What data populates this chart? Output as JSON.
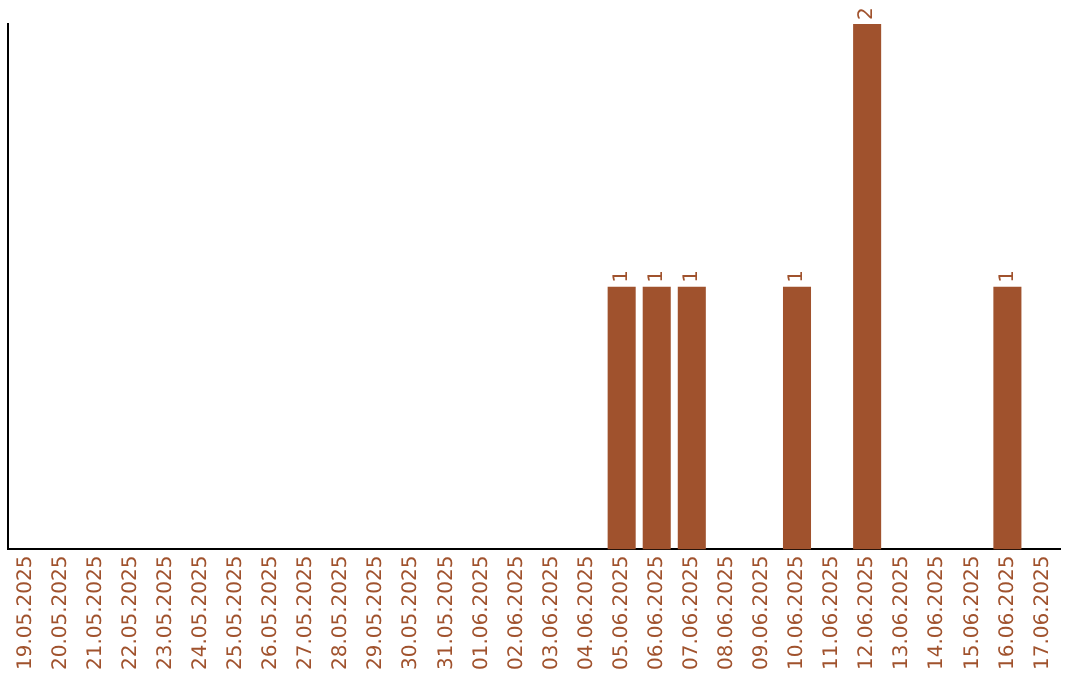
{
  "chart_data": {
    "type": "bar",
    "categories": [
      "19.05.2025",
      "20.05.2025",
      "21.05.2025",
      "22.05.2025",
      "23.05.2025",
      "24.05.2025",
      "25.05.2025",
      "26.05.2025",
      "27.05.2025",
      "28.05.2025",
      "29.05.2025",
      "30.05.2025",
      "31.05.2025",
      "01.06.2025",
      "02.06.2025",
      "03.06.2025",
      "04.06.2025",
      "05.06.2025",
      "06.06.2025",
      "07.06.2025",
      "08.06.2025",
      "09.06.2025",
      "10.06.2025",
      "11.06.2025",
      "12.06.2025",
      "13.06.2025",
      "14.06.2025",
      "15.06.2025",
      "16.06.2025",
      "17.06.2025"
    ],
    "values": [
      null,
      null,
      null,
      null,
      null,
      null,
      null,
      null,
      null,
      null,
      null,
      null,
      null,
      null,
      null,
      null,
      null,
      1,
      1,
      1,
      null,
      null,
      1,
      null,
      2,
      null,
      null,
      null,
      1,
      null
    ],
    "data_labels": true,
    "color": "#a0522d",
    "grid": false,
    "legend": false,
    "tick_labels": "x"
  }
}
